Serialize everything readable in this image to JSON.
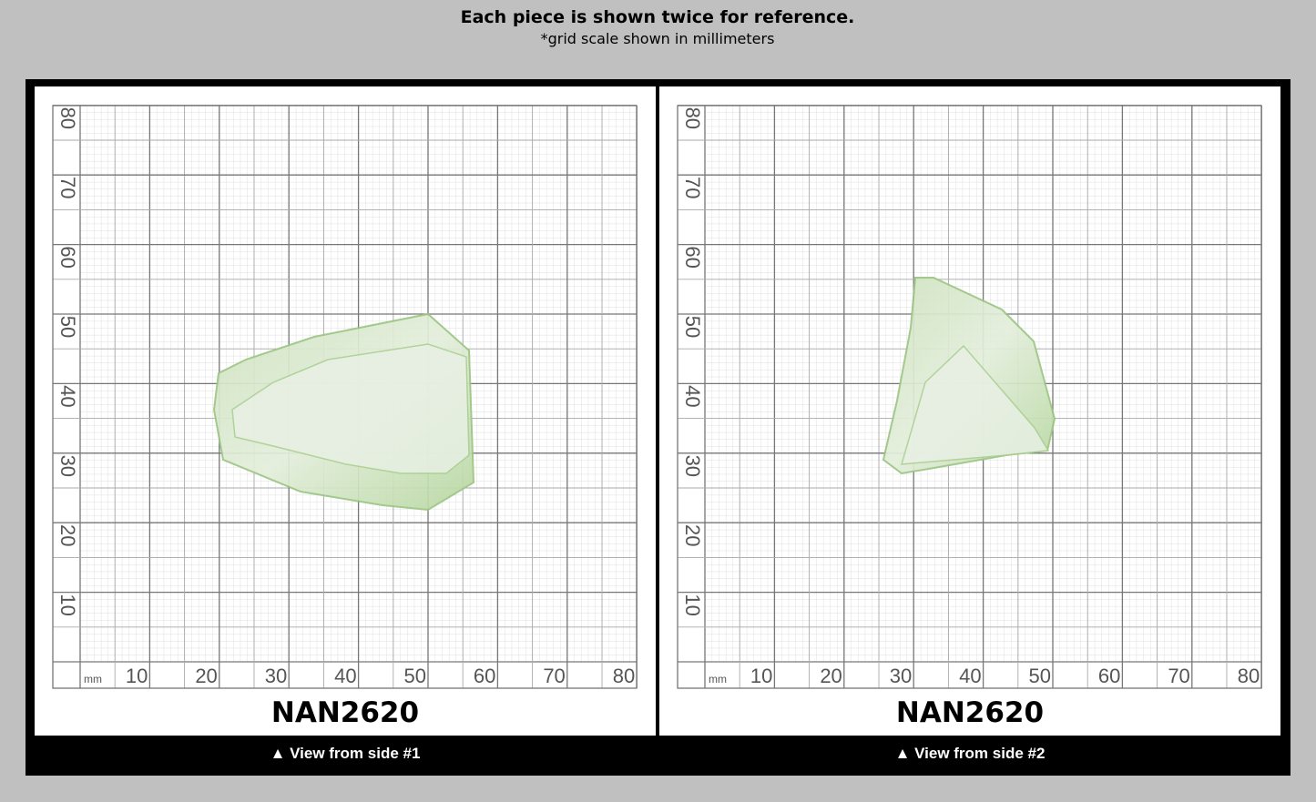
{
  "header": {
    "title": "Each piece is shown twice for reference.",
    "subtitle": "*grid scale shown in millimeters"
  },
  "grid": {
    "unit": "mm",
    "x_labels": [
      "10",
      "20",
      "30",
      "40",
      "50",
      "60",
      "70",
      "80"
    ],
    "y_labels": [
      "10",
      "20",
      "30",
      "40",
      "50",
      "60",
      "70",
      "80"
    ]
  },
  "panels": [
    {
      "label": "NAN2620",
      "caption": "▲ View from side #1"
    },
    {
      "label": "NAN2620",
      "caption": "▲ View from side #2"
    }
  ]
}
